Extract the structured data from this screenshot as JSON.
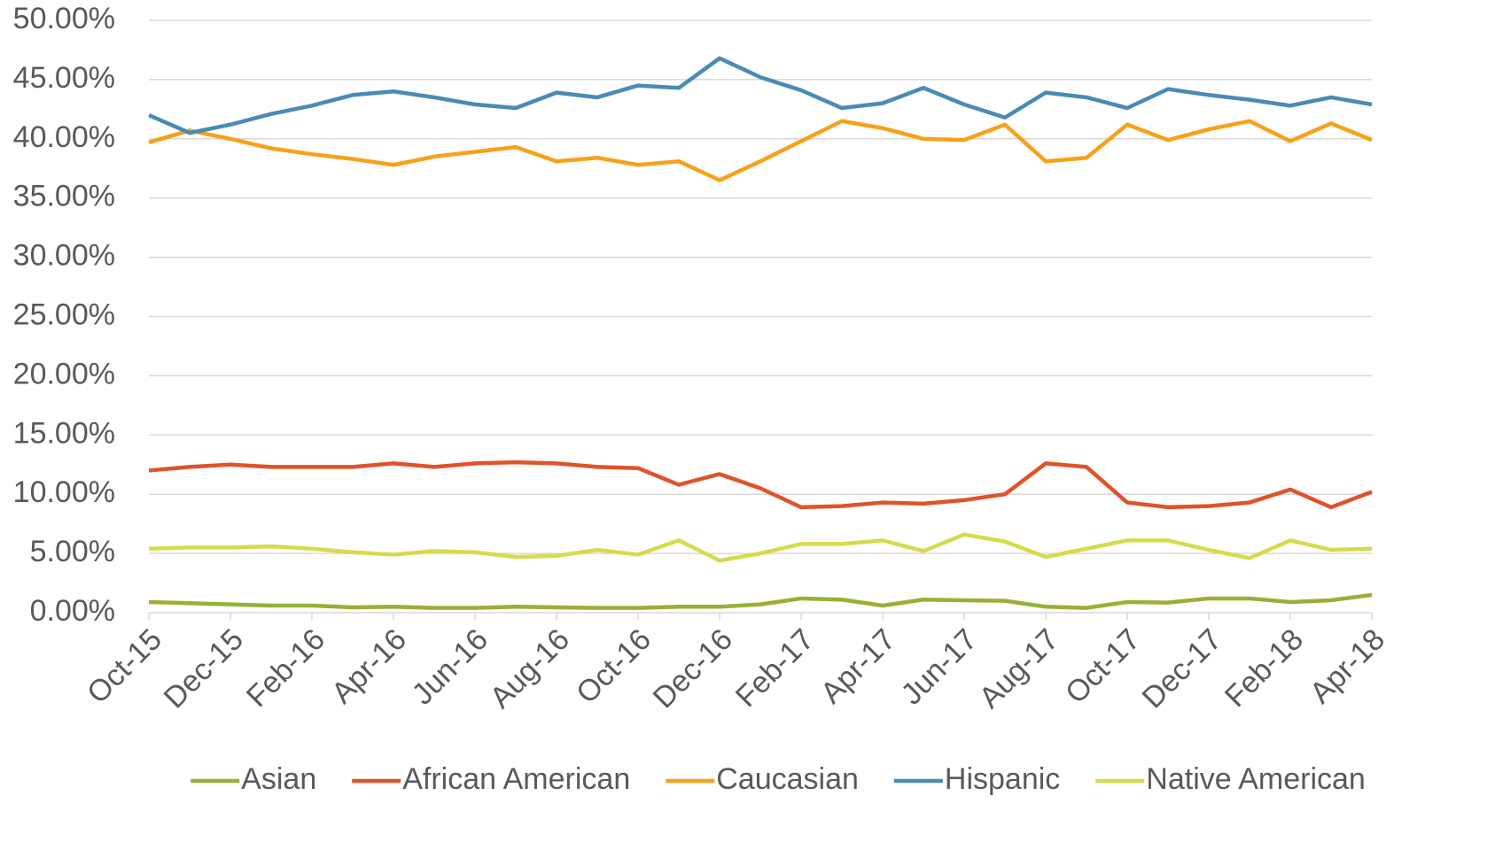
{
  "chart_data": {
    "type": "line",
    "categories": [
      "Oct-15",
      null,
      "Dec-15",
      null,
      "Feb-16",
      null,
      "Apr-16",
      null,
      "Jun-16",
      null,
      "Aug-16",
      null,
      "Oct-16",
      null,
      "Dec-16",
      null,
      "Feb-17",
      null,
      "Apr-17",
      null,
      "Jun-17",
      null,
      "Aug-17",
      null,
      "Oct-17",
      null,
      "Dec-17",
      null,
      "Feb-18",
      null,
      "Apr-18"
    ],
    "series": [
      {
        "name": "Asian",
        "color": "#95b234",
        "values": [
          0.9,
          0.8,
          0.7,
          0.6,
          0.6,
          0.45,
          0.5,
          0.4,
          0.4,
          0.5,
          0.45,
          0.4,
          0.4,
          0.5,
          0.5,
          0.7,
          1.2,
          1.1,
          0.6,
          1.1,
          1.05,
          1.0,
          0.5,
          0.4,
          0.9,
          0.85,
          1.2,
          1.2,
          0.9,
          1.05,
          1.5
        ]
      },
      {
        "name": "African American",
        "color": "#e0532a",
        "values": [
          12.0,
          12.3,
          12.5,
          12.3,
          12.3,
          12.3,
          12.6,
          12.3,
          12.6,
          12.7,
          12.6,
          12.3,
          12.2,
          10.8,
          11.7,
          10.5,
          8.9,
          9.0,
          9.3,
          9.2,
          9.5,
          10.0,
          12.6,
          12.3,
          9.3,
          8.9,
          9.0,
          9.3,
          10.4,
          8.9,
          10.2
        ]
      },
      {
        "name": "Caucasian",
        "color": "#f7a11a",
        "values": [
          39.7,
          40.7,
          40.0,
          39.2,
          38.7,
          38.3,
          37.8,
          38.5,
          38.9,
          39.3,
          38.1,
          38.4,
          37.8,
          38.1,
          36.5,
          38.1,
          39.8,
          41.5,
          40.9,
          40.0,
          39.9,
          41.2,
          38.1,
          38.4,
          41.2,
          39.9,
          40.8,
          41.5,
          39.8,
          41.3,
          39.9
        ]
      },
      {
        "name": "Hispanic",
        "color": "#4a8bb5",
        "values": [
          42.0,
          40.5,
          41.2,
          42.1,
          42.8,
          43.7,
          44.0,
          43.5,
          42.9,
          42.6,
          43.9,
          43.5,
          44.5,
          44.3,
          46.8,
          45.2,
          44.1,
          42.6,
          43.0,
          44.3,
          42.9,
          41.8,
          43.9,
          43.5,
          42.6,
          44.2,
          43.7,
          43.3,
          42.8,
          43.5,
          42.9
        ]
      },
      {
        "name": "Native American",
        "color": "#d6db4c",
        "values": [
          5.4,
          5.5,
          5.5,
          5.6,
          5.4,
          5.1,
          4.9,
          5.2,
          5.1,
          4.7,
          4.8,
          5.3,
          4.9,
          6.1,
          4.4,
          5.0,
          5.8,
          5.8,
          6.1,
          5.2,
          6.6,
          6.0,
          4.7,
          5.4,
          6.1,
          6.1,
          5.3,
          4.6,
          6.1,
          5.3,
          5.4
        ]
      }
    ],
    "ylim": [
      0,
      50
    ],
    "yticks": [
      {
        "value": 0,
        "label": "0.00%"
      },
      {
        "value": 5,
        "label": "5.00%"
      },
      {
        "value": 10,
        "label": "10.00%"
      },
      {
        "value": 15,
        "label": "15.00%"
      },
      {
        "value": 20,
        "label": "20.00%"
      },
      {
        "value": 25,
        "label": "25.00%"
      },
      {
        "value": 30,
        "label": "30.00%"
      },
      {
        "value": 35,
        "label": "35.00%"
      },
      {
        "value": 40,
        "label": "40.00%"
      },
      {
        "value": 45,
        "label": "45.00%"
      },
      {
        "value": 50,
        "label": "50.00%"
      }
    ],
    "grid": true,
    "legend": "bottom"
  }
}
